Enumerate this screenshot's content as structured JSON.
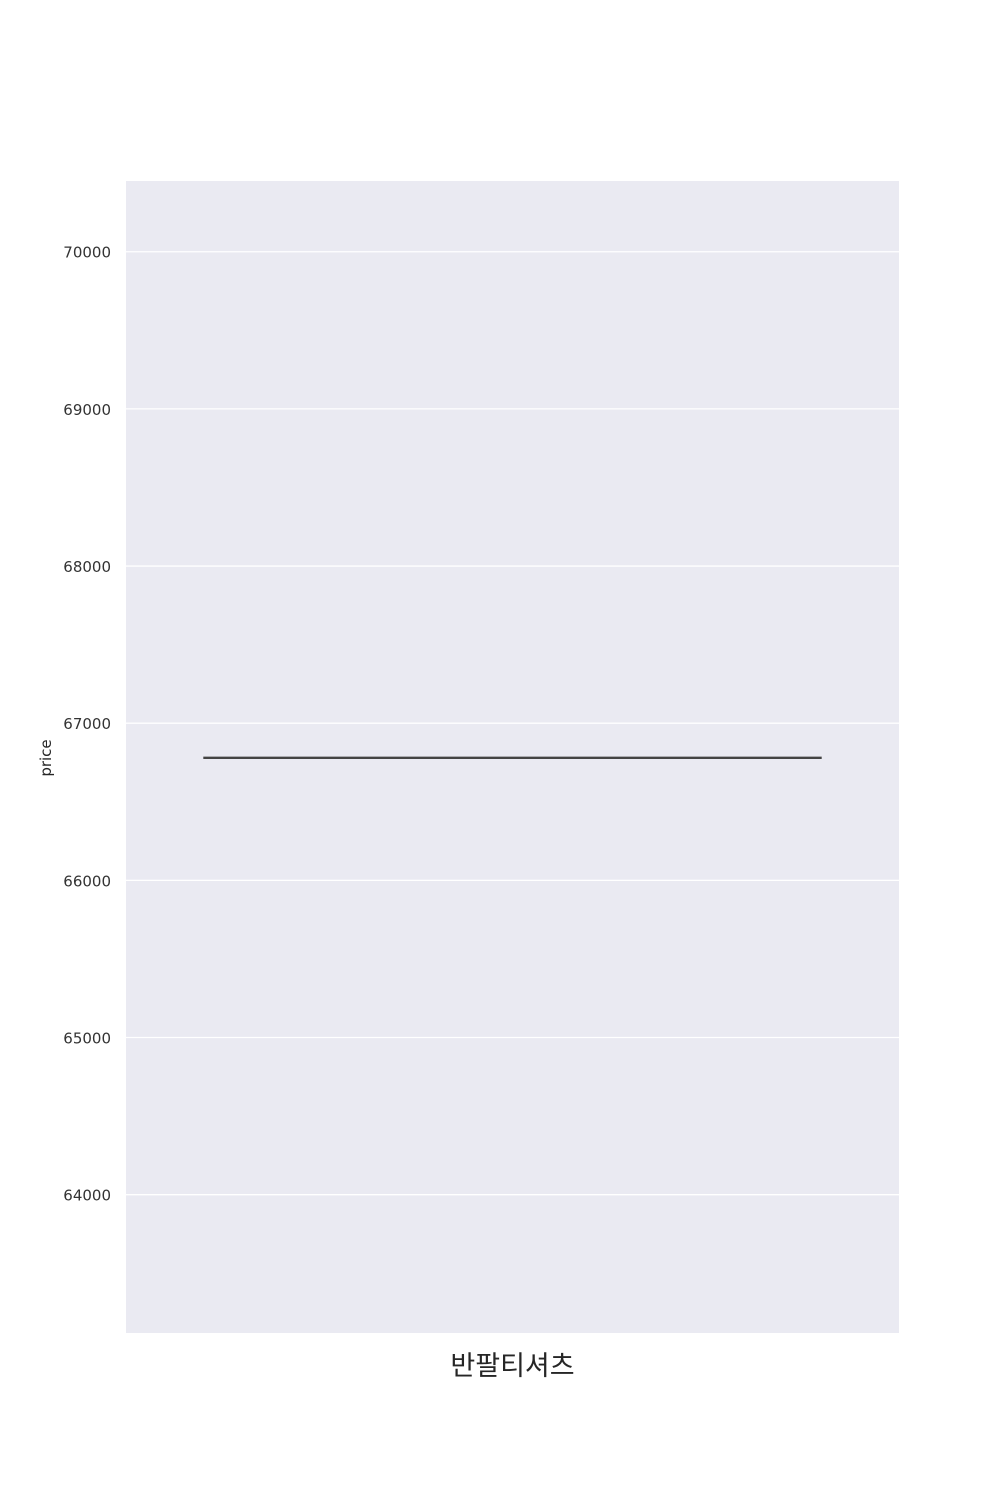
{
  "chart_data": {
    "type": "box",
    "title": "",
    "xlabel": "",
    "ylabel": "price",
    "categories": [
      "반팔티셔츠"
    ],
    "series": [
      {
        "category": "반팔티셔츠",
        "min": 66780,
        "q1": 66780,
        "median": 66780,
        "q3": 66780,
        "max": 66780
      }
    ],
    "yticks": [
      64000,
      65000,
      66000,
      67000,
      68000,
      69000,
      70000
    ],
    "ylim": [
      63120,
      70450
    ],
    "grid": true,
    "colors": {
      "plot_bg": "#EAEAF2",
      "grid": "#FFFFFF",
      "line": "#444444"
    }
  }
}
